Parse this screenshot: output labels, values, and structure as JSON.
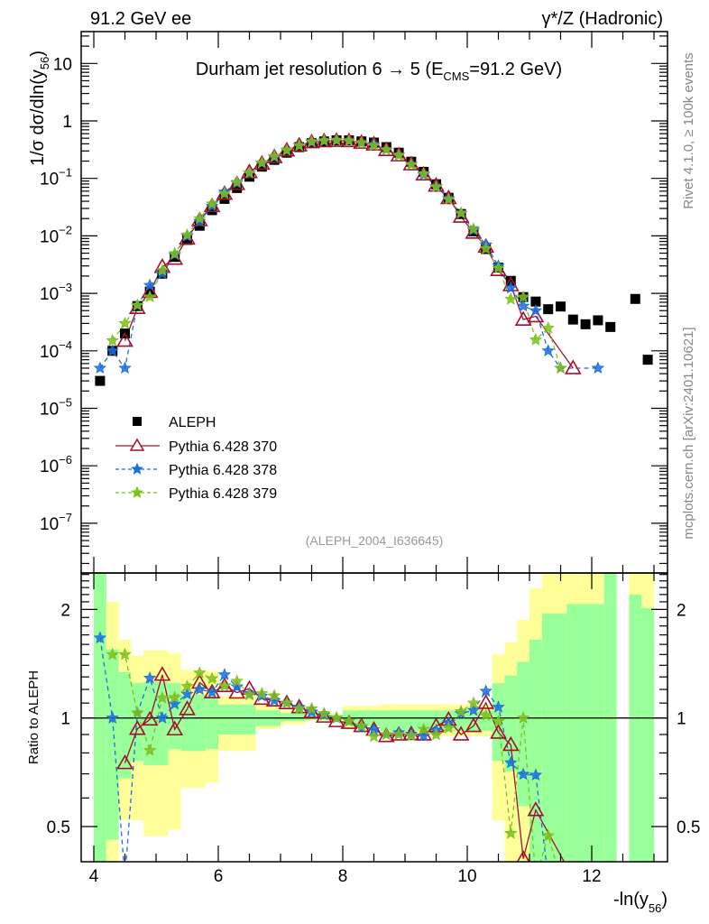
{
  "header": {
    "left": "91.2 GeV ee",
    "right": "γ*/Z (Hadronic)"
  },
  "side_text": {
    "rivet": "Rivet 4.1.0, ≥ 100k events",
    "mcplots": "mcplots.cern.ch [arXiv:2401.10621]"
  },
  "analysis_id": "(ALEPH_2004_I636645)",
  "colors": {
    "aleph": "#000000",
    "p370": "#a50f2b",
    "p378": "#1a6fe0",
    "p379": "#7fbf1f",
    "band_total": "#ffff99",
    "band_stat": "#99ff99"
  },
  "chart_data": [
    {
      "type": "scatter",
      "title_parts": {
        "main": "Durham jet resolution 6 → 5 (E",
        "sub": "CMS",
        "tail": "=91.2 GeV)"
      },
      "ylabel_parts": {
        "main": "1/σ  dσ/dln(y",
        "sub": "56",
        "tail": ")"
      },
      "yscale": "log",
      "ylim": [
        2e-08,
        37
      ],
      "xlim": [
        3.8,
        13.2
      ],
      "ytick_labels": [
        {
          "value": 10,
          "base": "10",
          "exp": ""
        },
        {
          "value": 1,
          "base": "1",
          "exp": ""
        },
        {
          "value": 0.1,
          "base": "10",
          "exp": "−1"
        },
        {
          "value": 0.01,
          "base": "10",
          "exp": "−2"
        },
        {
          "value": 0.001,
          "base": "10",
          "exp": "−3"
        },
        {
          "value": 0.0001,
          "base": "10",
          "exp": "−4"
        },
        {
          "value": 1e-05,
          "base": "10",
          "exp": "−5"
        },
        {
          "value": 1e-06,
          "base": "10",
          "exp": "−6"
        },
        {
          "value": 1e-07,
          "base": "10",
          "exp": "−7"
        }
      ],
      "legend_position": "center-left",
      "x": [
        4.1,
        4.3,
        4.5,
        4.7,
        4.9,
        5.1,
        5.3,
        5.5,
        5.7,
        5.9,
        6.1,
        6.3,
        6.5,
        6.7,
        6.9,
        7.1,
        7.3,
        7.5,
        7.7,
        7.9,
        8.1,
        8.3,
        8.5,
        8.7,
        8.9,
        9.1,
        9.3,
        9.5,
        9.7,
        9.9,
        10.1,
        10.3,
        10.5,
        10.7,
        10.9,
        11.1,
        11.3,
        11.5,
        11.7,
        11.9,
        12.1,
        12.3,
        12.5,
        12.7,
        12.9
      ],
      "series": [
        {
          "name": "ALEPH",
          "key": "aleph",
          "marker": "square",
          "line": "none",
          "values": [
            3e-05,
            0.0001,
            0.0002,
            0.0006,
            0.00107,
            0.0022,
            0.0043,
            0.0085,
            0.015,
            0.028,
            0.044,
            0.068,
            0.107,
            0.16,
            0.21,
            0.28,
            0.35,
            0.41,
            0.44,
            0.46,
            0.46,
            0.44,
            0.42,
            0.35,
            0.28,
            0.195,
            0.13,
            0.079,
            0.046,
            0.024,
            0.012,
            0.0059,
            0.0028,
            0.00165,
            0.00086,
            0.00072,
            0.00053,
            0.00059,
            0.00035,
            0.00029,
            0.00034,
            0.00026,
            null,
            0.0008,
            7e-05
          ]
        },
        {
          "name": "Pythia 6.428 370",
          "key": "p370",
          "marker": "open-triangle",
          "line": "solid",
          "values": [
            null,
            null,
            0.00015,
            0.00056,
            0.00106,
            0.0029,
            0.004,
            0.009,
            0.0188,
            0.033,
            0.054,
            0.08,
            0.129,
            0.181,
            0.235,
            0.308,
            0.375,
            0.426,
            0.444,
            0.451,
            0.446,
            0.418,
            0.39,
            0.312,
            0.252,
            0.176,
            0.117,
            0.075,
            0.0455,
            0.0216,
            0.0114,
            0.0065,
            0.00255,
            0.00139,
            0.00035,
            0.0004,
            null,
            null,
            5e-05,
            null,
            null,
            null,
            null,
            null,
            null
          ]
        },
        {
          "name": "Pythia 6.428 378",
          "key": "p378",
          "marker": "star",
          "line": "dashed",
          "values": [
            5e-05,
            0.0001,
            5e-05,
            0.00062,
            0.00138,
            0.0022,
            0.0047,
            0.0099,
            0.018,
            0.033,
            0.058,
            0.083,
            0.125,
            0.184,
            0.235,
            0.308,
            0.375,
            0.426,
            0.449,
            0.46,
            0.451,
            0.414,
            0.39,
            0.315,
            0.255,
            0.176,
            0.116,
            0.073,
            0.0446,
            0.0247,
            0.0126,
            0.007,
            0.003,
            0.00124,
            0.0006,
            0.0005,
            0.0001,
            5e-05,
            null,
            null,
            5e-05,
            null,
            null,
            null,
            null
          ]
        },
        {
          "name": "Pythia 6.428 379",
          "key": "p379",
          "marker": "star",
          "line": "dashed",
          "values": [
            null,
            0.00015,
            0.0003,
            0.00062,
            0.00087,
            0.0025,
            0.0049,
            0.0104,
            0.02,
            0.036,
            0.054,
            0.086,
            0.124,
            0.187,
            0.242,
            0.308,
            0.371,
            0.435,
            0.453,
            0.46,
            0.451,
            0.418,
            0.373,
            0.315,
            0.252,
            0.174,
            0.121,
            0.071,
            0.0432,
            0.025,
            0.0132,
            0.006,
            0.00274,
            0.00079,
            0.00086,
            0.000155,
            0.00025,
            5e-05,
            null,
            null,
            null,
            null,
            null,
            null,
            null
          ]
        }
      ]
    },
    {
      "type": "line",
      "ylabel": "Ratio to ALEPH",
      "xlabel_parts": {
        "main": "-ln(y",
        "sub": "56",
        "tail": ")"
      },
      "yscale": "log",
      "ylim": [
        0.4,
        2.52
      ],
      "xlim": [
        3.8,
        13.2
      ],
      "reference_line": 1,
      "xtick_labels": [
        "4",
        "6",
        "8",
        "10",
        "12"
      ],
      "xtick_values": [
        4,
        6,
        8,
        10,
        12
      ],
      "ytick_labels": [
        {
          "value": 2,
          "label": "2"
        },
        {
          "value": 1,
          "label": "1"
        },
        {
          "value": 0.5,
          "label": "0.5"
        }
      ],
      "ratio_of": "series / ALEPH",
      "uncertainty_bands": {
        "columns": [
          "x_lo",
          "x_hi",
          "total_lo",
          "total_hi",
          "stat_lo",
          "stat_hi"
        ],
        "bins": [
          [
            4.0,
            4.2,
            0.3,
            3,
            0.3,
            3
          ],
          [
            4.2,
            4.4,
            0.3,
            2.1,
            0.46,
            1.55
          ],
          [
            4.4,
            4.6,
            0.52,
            1.65,
            0.68,
            1.34
          ],
          [
            4.6,
            4.8,
            0.52,
            1.49,
            0.76,
            1.25
          ],
          [
            4.8,
            5.2,
            0.47,
            1.54,
            0.74,
            1.26
          ],
          [
            5.2,
            5.4,
            0.49,
            1.51,
            0.82,
            1.25
          ],
          [
            5.4,
            5.8,
            0.64,
            1.36,
            0.81,
            1.16
          ],
          [
            5.8,
            6.0,
            0.66,
            1.35,
            0.82,
            1.15
          ],
          [
            6.0,
            6.6,
            0.81,
            1.15,
            0.9,
            1.09
          ],
          [
            6.6,
            7.0,
            0.93,
            1.09,
            0.95,
            1.05
          ],
          [
            7.0,
            7.4,
            0.96,
            1.05,
            0.98,
            1.03
          ],
          [
            7.4,
            8.0,
            0.98,
            1.03,
            0.99,
            1.02
          ],
          [
            8.0,
            8.6,
            0.93,
            1.08,
            0.95,
            1.05
          ],
          [
            8.6,
            10.4,
            0.89,
            1.09,
            0.92,
            1.05
          ],
          [
            10.4,
            10.6,
            0.52,
            1.5,
            0.76,
            1.25
          ],
          [
            10.6,
            10.8,
            0.3,
            1.62,
            0.71,
            1.31
          ],
          [
            10.8,
            11.0,
            0.3,
            1.87,
            0.57,
            1.43
          ],
          [
            11.0,
            11.2,
            0.3,
            2.29,
            0.3,
            1.65
          ],
          [
            11.2,
            11.6,
            0.3,
            3,
            0.3,
            1.95
          ],
          [
            11.6,
            12.2,
            0.3,
            3,
            0.3,
            2.07
          ],
          [
            12.2,
            12.4,
            0.3,
            3,
            0.3,
            3
          ],
          [
            12.6,
            12.8,
            0.3,
            3,
            0.3,
            2.2
          ],
          [
            12.8,
            13.0,
            0.3,
            3,
            0.3,
            2.02
          ]
        ]
      }
    }
  ]
}
